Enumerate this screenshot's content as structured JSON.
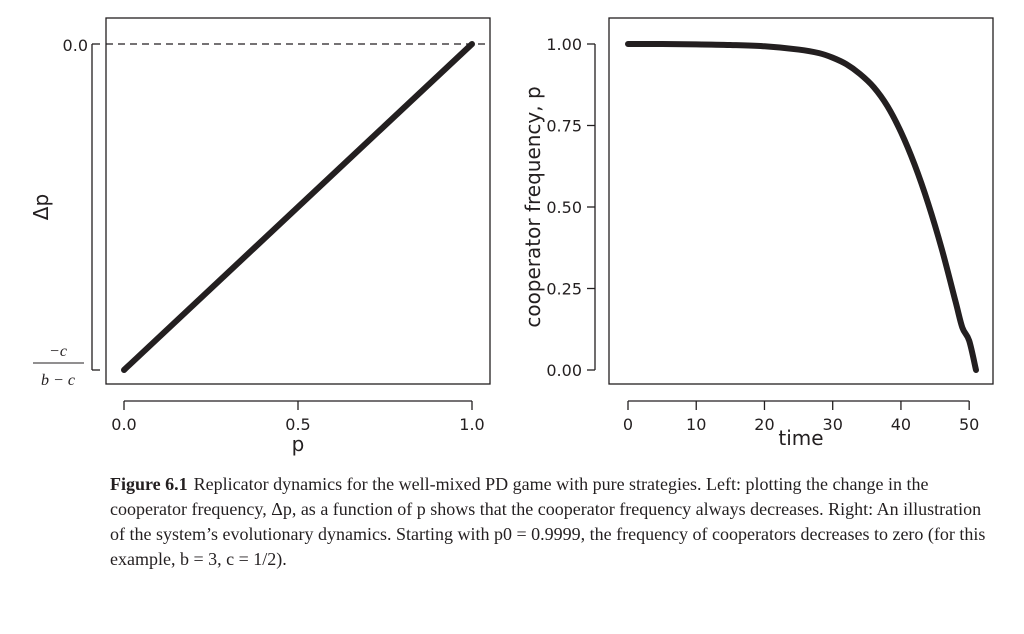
{
  "caption": {
    "label": "Figure 6.1",
    "text": "Replicator dynamics for the well-mixed PD game with pure strategies. Left: plotting the change in the cooperator frequency, Δp, as a function of p shows that the cooperator frequency always decreases. Right: An illustration of the system’s evolutionary dynamics. Starting with p0 = 0.9999, the frequency of cooperators decreases to zero (for this example, b = 3, c = 1/2)."
  },
  "chart_data": [
    {
      "type": "line",
      "xlabel": "p",
      "ylabel": "Δp",
      "xlim": [
        0,
        1
      ],
      "x_ticks": [
        0.0,
        0.5,
        1.0
      ],
      "x_tick_labels": [
        "0.0",
        "0.5",
        "1.0"
      ],
      "y_tick_labels": [
        "−c / (b − c)",
        "0.0"
      ],
      "y_tick_label_zero": "0.0",
      "y_tick_label_min_num": "−c",
      "y_tick_label_min_den": "b − c",
      "reference_line": {
        "y": 0,
        "style": "dashed"
      },
      "series": [
        {
          "x": [
            0.0,
            1.0
          ],
          "y": [
            -0.2,
            0.0
          ]
        }
      ],
      "ylim": [
        -0.2,
        0.0
      ],
      "grid": false
    },
    {
      "type": "line",
      "xlabel": "time",
      "ylabel": "cooperator frequency, p",
      "xlim": [
        0,
        51
      ],
      "ylim": [
        0,
        1
      ],
      "x_ticks": [
        0,
        10,
        20,
        30,
        40,
        50
      ],
      "x_tick_labels": [
        "0",
        "10",
        "20",
        "30",
        "40",
        "50"
      ],
      "y_ticks": [
        0.0,
        0.25,
        0.5,
        0.75,
        1.0
      ],
      "y_tick_labels": [
        "0.00",
        "0.25",
        "0.50",
        "0.75",
        "1.00"
      ],
      "series": [
        {
          "x": [
            0,
            5,
            10,
            15,
            20,
            25,
            28,
            30,
            32,
            34,
            36,
            38,
            40,
            42,
            44,
            46,
            48,
            49,
            50,
            51
          ],
          "y": [
            1.0,
            1.0,
            0.999,
            0.997,
            0.993,
            0.983,
            0.972,
            0.958,
            0.938,
            0.908,
            0.868,
            0.81,
            0.73,
            0.63,
            0.51,
            0.37,
            0.21,
            0.13,
            0.09,
            0.0
          ]
        }
      ],
      "grid": false
    }
  ]
}
